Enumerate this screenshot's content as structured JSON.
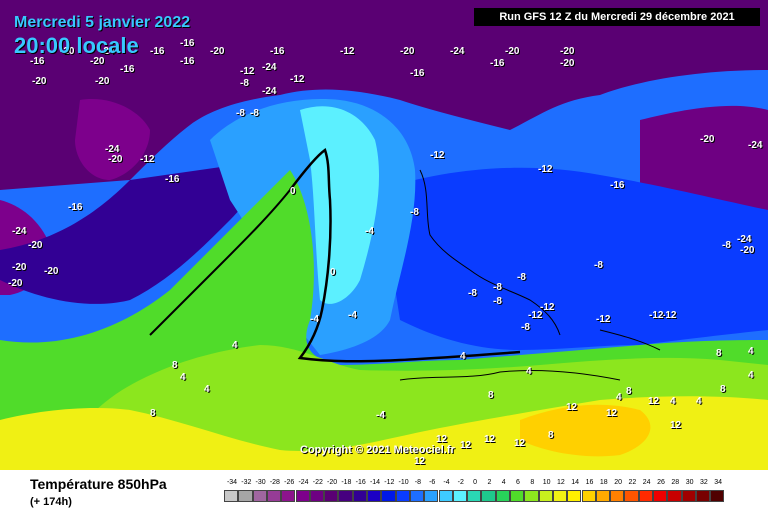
{
  "header": {
    "date_label": "Mercredi 5 janvier 2022",
    "time_label": "20:00 locale",
    "run_label": "Run GFS 12 Z du Mercredi 29 décembre 2021"
  },
  "copyright": "Copyright © 2021 Meteociel.fr",
  "legend": {
    "variable_title": "Température 850hPa",
    "lead_time": "(+ 174h)",
    "ticks": [
      "-34",
      "-32",
      "-30",
      "-28",
      "-26",
      "-24",
      "-22",
      "-20",
      "-18",
      "-16",
      "-14",
      "-12",
      "-10",
      "-8",
      "-6",
      "-4",
      "-2",
      "0",
      "2",
      "4",
      "6",
      "8",
      "10",
      "12",
      "14",
      "16",
      "18",
      "20",
      "22",
      "24",
      "26",
      "28",
      "30",
      "32",
      "34"
    ],
    "colors": [
      "#c8c8c8",
      "#a6a6a6",
      "#a066a0",
      "#963c96",
      "#8c148c",
      "#7d008c",
      "#6e0082",
      "#5a0073",
      "#46007f",
      "#320094",
      "#1c00c4",
      "#0018e8",
      "#0a3cff",
      "#1e6eff",
      "#2aa0ff",
      "#3ecbff",
      "#5cf0ff",
      "#2ad7b4",
      "#1ec88c",
      "#28d25a",
      "#50dc2a",
      "#8ce61e",
      "#c8f01e",
      "#f0f014",
      "#fff000",
      "#ffd000",
      "#ffaa00",
      "#ff8000",
      "#ff5500",
      "#ff2a00",
      "#ee0000",
      "#c80000",
      "#a00000",
      "#780000",
      "#500000"
    ]
  },
  "isotherm_labels": [
    {
      "t": "-20"
    },
    {
      "t": "-24"
    },
    {
      "t": "-16"
    },
    {
      "t": "-20"
    },
    {
      "t": "-16"
    },
    {
      "t": "-12"
    },
    {
      "t": "-20"
    },
    {
      "t": "-24"
    },
    {
      "t": "-20"
    },
    {
      "t": "-20"
    },
    {
      "t": "-16"
    },
    {
      "t": "-20"
    },
    {
      "t": "-16"
    },
    {
      "t": "-16"
    },
    {
      "t": "-20"
    },
    {
      "t": "-20"
    },
    {
      "t": "-12"
    },
    {
      "t": "-16"
    },
    {
      "t": "-12"
    },
    {
      "t": "-8"
    },
    {
      "t": "-24"
    },
    {
      "t": "-20"
    },
    {
      "t": "-12"
    },
    {
      "t": "-16"
    },
    {
      "t": "-24"
    },
    {
      "t": "-20"
    },
    {
      "t": "-20"
    },
    {
      "t": "-20"
    },
    {
      "t": "-20"
    },
    {
      "t": "-16"
    },
    {
      "t": "-8"
    },
    {
      "t": "-8"
    },
    {
      "t": "-24"
    },
    {
      "t": "-24"
    },
    {
      "t": "-16"
    },
    {
      "t": "-20"
    },
    {
      "t": "-16"
    },
    {
      "t": "-12"
    },
    {
      "t": "-12"
    },
    {
      "t": "-16"
    },
    {
      "t": "-20"
    },
    {
      "t": "-24"
    },
    {
      "t": "-8"
    },
    {
      "t": "-4"
    },
    {
      "t": "0"
    },
    {
      "t": "-4"
    },
    {
      "t": "-8"
    },
    {
      "t": "-8"
    },
    {
      "t": "-8"
    },
    {
      "t": "-8"
    },
    {
      "t": "-8"
    },
    {
      "t": "-8"
    },
    {
      "t": "-12"
    },
    {
      "t": "-12"
    },
    {
      "t": "-12"
    },
    {
      "t": "-12"
    },
    {
      "t": "-8"
    },
    {
      "t": "-12"
    },
    {
      "t": "-24"
    },
    {
      "t": "-20"
    },
    {
      "t": "0"
    },
    {
      "t": "-4"
    },
    {
      "t": "4"
    },
    {
      "t": "4"
    },
    {
      "t": "4"
    },
    {
      "t": "4"
    },
    {
      "t": "8"
    },
    {
      "t": "8"
    },
    {
      "t": "4"
    },
    {
      "t": "8"
    },
    {
      "t": "4"
    },
    {
      "t": "-4"
    },
    {
      "t": "8"
    },
    {
      "t": "8"
    },
    {
      "t": "12"
    },
    {
      "t": "12"
    },
    {
      "t": "12"
    },
    {
      "t": "12"
    },
    {
      "t": "12"
    },
    {
      "t": "12"
    },
    {
      "t": "12"
    },
    {
      "t": "12"
    },
    {
      "t": "8"
    },
    {
      "t": "4"
    },
    {
      "t": "4"
    },
    {
      "t": "8"
    },
    {
      "t": "4"
    },
    {
      "t": "4"
    },
    {
      "t": "4"
    },
    {
      "t": "12"
    }
  ]
}
